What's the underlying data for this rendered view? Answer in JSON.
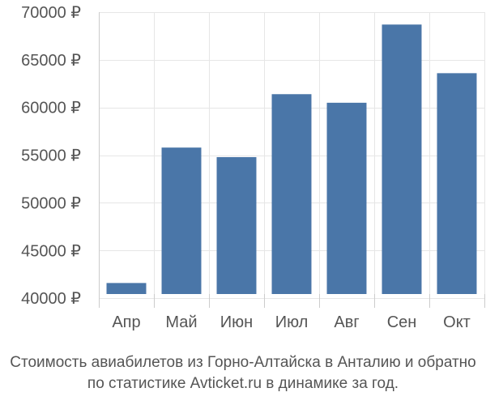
{
  "chart_data": {
    "type": "bar",
    "categories": [
      "Апр",
      "Май",
      "Июн",
      "Июл",
      "Авг",
      "Сен",
      "Окт"
    ],
    "values": [
      41600,
      55800,
      54800,
      61400,
      60500,
      68700,
      63600
    ],
    "ylim": [
      39000,
      70000
    ],
    "yticks": [
      40000,
      45000,
      50000,
      55000,
      60000,
      65000,
      70000
    ],
    "ytick_labels": [
      "40000 ₽",
      "45000 ₽",
      "50000 ₽",
      "55000 ₽",
      "60000 ₽",
      "65000 ₽",
      "70000 ₽"
    ],
    "bar_color": "#4a76a8",
    "grid": true
  },
  "caption": {
    "line1": "Стоимость авиабилетов из Горно-Алтайска в Анталию и обратно",
    "line2": "по статистике Avticket.ru в динамике за год."
  }
}
